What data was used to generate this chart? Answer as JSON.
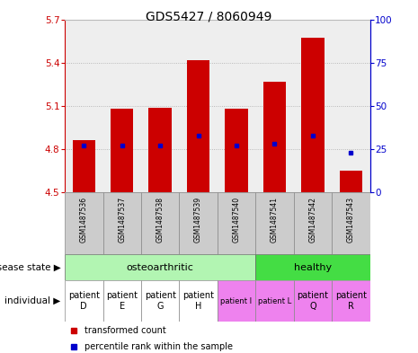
{
  "title": "GDS5427 / 8060949",
  "samples": [
    "GSM1487536",
    "GSM1487537",
    "GSM1487538",
    "GSM1487539",
    "GSM1487540",
    "GSM1487541",
    "GSM1487542",
    "GSM1487543"
  ],
  "transformed_counts": [
    4.86,
    5.08,
    5.09,
    5.42,
    5.08,
    5.27,
    5.57,
    4.65
  ],
  "percentile_ranks": [
    27,
    27,
    27,
    33,
    27,
    28,
    33,
    23
  ],
  "ylim_left": [
    4.5,
    5.7
  ],
  "ylim_right": [
    0,
    100
  ],
  "yticks_left": [
    4.5,
    4.8,
    5.1,
    5.4,
    5.7
  ],
  "yticks_right": [
    0,
    25,
    50,
    75,
    100
  ],
  "disease_states": [
    {
      "label": "osteoarthritic",
      "start": 0,
      "end": 4,
      "color": "#b2f5b2"
    },
    {
      "label": "healthy",
      "start": 5,
      "end": 7,
      "color": "#44dd44"
    }
  ],
  "individuals": [
    {
      "label": "patient\nD",
      "idx": 0,
      "color": "#ffffff",
      "fontsize": 7
    },
    {
      "label": "patient\nE",
      "idx": 1,
      "color": "#ffffff",
      "fontsize": 7
    },
    {
      "label": "patient\nG",
      "idx": 2,
      "color": "#ffffff",
      "fontsize": 7
    },
    {
      "label": "patient\nH",
      "idx": 3,
      "color": "#ffffff",
      "fontsize": 7
    },
    {
      "label": "patient I",
      "idx": 4,
      "color": "#ee82ee",
      "fontsize": 6
    },
    {
      "label": "patient L",
      "idx": 5,
      "color": "#ee82ee",
      "fontsize": 6
    },
    {
      "label": "patient\nQ",
      "idx": 6,
      "color": "#ee82ee",
      "fontsize": 7
    },
    {
      "label": "patient\nR",
      "idx": 7,
      "color": "#ee82ee",
      "fontsize": 7
    }
  ],
  "bar_color": "#cc0000",
  "dot_color": "#0000cc",
  "bar_bottom": 4.5,
  "bar_width": 0.6,
  "bg_color": "#ffffff",
  "plot_bg_color": "#eeeeee",
  "axis_color_left": "#cc0000",
  "axis_color_right": "#0000cc",
  "gsm_bg": "#cccccc",
  "gsm_border": "#888888",
  "tick_fontsize": 7.5,
  "title_fontsize": 10,
  "gsm_fontsize": 5.5,
  "ds_fontsize": 8,
  "ind_fontsize": 7,
  "row_label_fontsize": 7.5
}
